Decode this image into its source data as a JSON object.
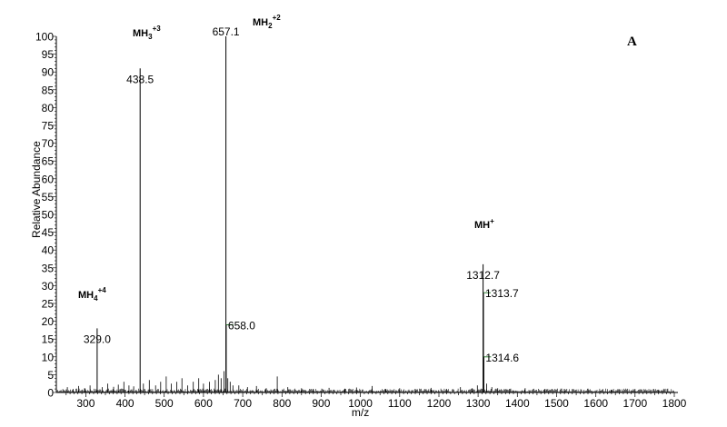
{
  "chart_data": {
    "type": "line",
    "subtype": "mass-spectrum-stick",
    "panel_label": "A",
    "xlabel": "m/z",
    "ylabel": "Relative Abundance",
    "xlim": [
      225,
      1800
    ],
    "ylim": [
      0,
      100
    ],
    "x_ticks": [
      300,
      400,
      500,
      600,
      700,
      800,
      900,
      1000,
      1100,
      1200,
      1300,
      1400,
      1500,
      1600,
      1700,
      1800
    ],
    "y_ticks": [
      0,
      5,
      10,
      15,
      20,
      25,
      30,
      35,
      40,
      45,
      50,
      55,
      60,
      65,
      70,
      75,
      80,
      85,
      90,
      95,
      100
    ],
    "labeled_peaks": [
      {
        "x": 329.0,
        "y": 18,
        "label": "329.0"
      },
      {
        "x": 438.5,
        "y": 91,
        "label": "438.5"
      },
      {
        "x": 657.1,
        "y": 100,
        "label": "657.1"
      },
      {
        "x": 658.0,
        "y": 19,
        "label": "658.0",
        "marker_color": "#2e7d32"
      },
      {
        "x": 1312.7,
        "y": 36,
        "label": "1312.7"
      },
      {
        "x": 1313.7,
        "y": 28,
        "label": "1313.7",
        "marker_color": "#2e7d32"
      },
      {
        "x": 1314.6,
        "y": 10,
        "label": "1314.6",
        "marker_color": "#2e7d32"
      }
    ],
    "minor_peaks": [
      {
        "x": 253,
        "y": 1.5
      },
      {
        "x": 268,
        "y": 1
      },
      {
        "x": 282,
        "y": 1.8
      },
      {
        "x": 297,
        "y": 1.2
      },
      {
        "x": 311,
        "y": 2
      },
      {
        "x": 342,
        "y": 1.5
      },
      {
        "x": 356,
        "y": 2.5
      },
      {
        "x": 371,
        "y": 1.6
      },
      {
        "x": 383,
        "y": 2.2
      },
      {
        "x": 397,
        "y": 3
      },
      {
        "x": 410,
        "y": 2
      },
      {
        "x": 422,
        "y": 1.7
      },
      {
        "x": 447,
        "y": 2.5
      },
      {
        "x": 462,
        "y": 3.5
      },
      {
        "x": 478,
        "y": 2
      },
      {
        "x": 491,
        "y": 3
      },
      {
        "x": 505,
        "y": 4.5
      },
      {
        "x": 518,
        "y": 2.5
      },
      {
        "x": 532,
        "y": 3
      },
      {
        "x": 545,
        "y": 4
      },
      {
        "x": 560,
        "y": 2
      },
      {
        "x": 574,
        "y": 3
      },
      {
        "x": 588,
        "y": 4
      },
      {
        "x": 600,
        "y": 2.5
      },
      {
        "x": 615,
        "y": 3
      },
      {
        "x": 630,
        "y": 3.5
      },
      {
        "x": 638,
        "y": 5
      },
      {
        "x": 645,
        "y": 4
      },
      {
        "x": 652,
        "y": 6
      },
      {
        "x": 662,
        "y": 4
      },
      {
        "x": 668,
        "y": 3
      },
      {
        "x": 675,
        "y": 2
      },
      {
        "x": 690,
        "y": 2
      },
      {
        "x": 712,
        "y": 1.5
      },
      {
        "x": 735,
        "y": 1.8
      },
      {
        "x": 760,
        "y": 1.2
      },
      {
        "x": 788,
        "y": 4.5
      },
      {
        "x": 815,
        "y": 1.5
      },
      {
        "x": 850,
        "y": 1.2
      },
      {
        "x": 880,
        "y": 1
      },
      {
        "x": 920,
        "y": 1.3
      },
      {
        "x": 960,
        "y": 1
      },
      {
        "x": 990,
        "y": 1.4
      },
      {
        "x": 1030,
        "y": 1.8
      },
      {
        "x": 1065,
        "y": 1
      },
      {
        "x": 1100,
        "y": 1.2
      },
      {
        "x": 1140,
        "y": 1
      },
      {
        "x": 1180,
        "y": 1.3
      },
      {
        "x": 1220,
        "y": 1
      },
      {
        "x": 1255,
        "y": 1.5
      },
      {
        "x": 1285,
        "y": 1.2
      },
      {
        "x": 1298,
        "y": 2
      },
      {
        "x": 1322,
        "y": 2.5
      },
      {
        "x": 1335,
        "y": 1.5
      },
      {
        "x": 1350,
        "y": 1.2
      },
      {
        "x": 1380,
        "y": 1
      },
      {
        "x": 1420,
        "y": 1.2
      },
      {
        "x": 1470,
        "y": 1
      },
      {
        "x": 1520,
        "y": 1
      },
      {
        "x": 1580,
        "y": 1.1
      },
      {
        "x": 1640,
        "y": 0.8
      },
      {
        "x": 1700,
        "y": 1
      },
      {
        "x": 1760,
        "y": 0.8
      }
    ],
    "ion_annotations": [
      {
        "base": "MH",
        "sub": "4",
        "sup": "+4",
        "anchor_x": 329.0
      },
      {
        "base": "MH",
        "sub": "3",
        "sup": "+3",
        "anchor_x": 438.5
      },
      {
        "base": "MH",
        "sub": "2",
        "sup": "+2",
        "anchor_x": 657.1
      },
      {
        "base": "MH",
        "sub": "",
        "sup": "+",
        "anchor_x": 1312.7
      }
    ]
  }
}
